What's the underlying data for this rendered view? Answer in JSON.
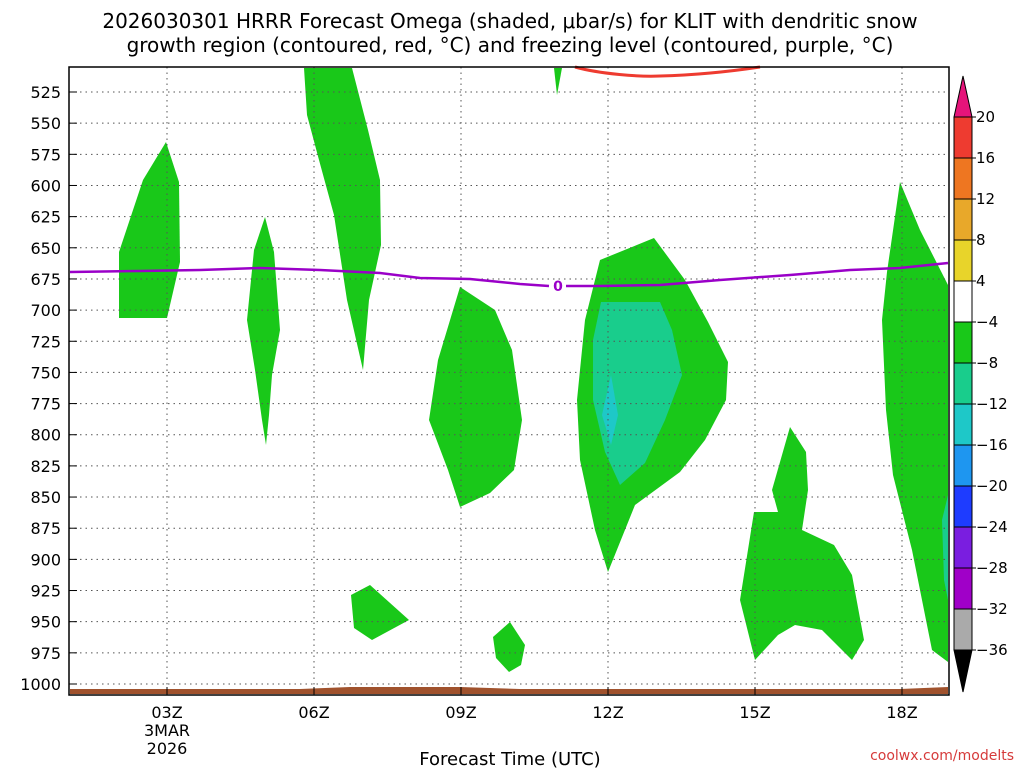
{
  "chart_data": {
    "type": "area",
    "title_line1": "2026030301 HRRR Forecast Omega (shaded, μbar/s) for KLIT with dendritic snow",
    "title_line2": "growth region (contoured, red, °C) and freezing level (contoured, purple, °C)",
    "xlabel": "Forecast Time (UTC)",
    "credit": "coolwx.com/modelts",
    "x_ticks": [
      "03Z",
      "06Z",
      "09Z",
      "12Z",
      "15Z",
      "18Z"
    ],
    "x_date_month": "3MAR",
    "x_date_year": "2026",
    "y_ticks": [
      "525",
      "550",
      "575",
      "600",
      "625",
      "650",
      "675",
      "700",
      "725",
      "750",
      "775",
      "800",
      "825",
      "850",
      "875",
      "900",
      "925",
      "950",
      "975",
      "1000"
    ],
    "y_range_hpa": [
      505,
      1005
    ],
    "x_range_hours": [
      1,
      19
    ],
    "freezing_level_label": "0",
    "freezing_level_color": "#9a00c8",
    "dgz_color": "#ee3b30",
    "surface_color": "#a0522d",
    "colorbar": {
      "labels": [
        "20",
        "16",
        "12",
        "8",
        "4",
        "−4",
        "−8",
        "−12",
        "−16",
        "−20",
        "−24",
        "−28",
        "−32",
        "−36"
      ],
      "colors": [
        "#ee3b30",
        "#ee7621",
        "#e8a82a",
        "#e8d42a",
        "#ffffff",
        "#ffffff",
        "#19c819",
        "#19cd8c",
        "#1ec8c8",
        "#1e96f0",
        "#1e3cff",
        "#7a1ee0",
        "#a000c8",
        "#aaaaaa"
      ],
      "top_arrow_color": "#e6147a",
      "bottom_arrow_color": "#000000"
    }
  }
}
